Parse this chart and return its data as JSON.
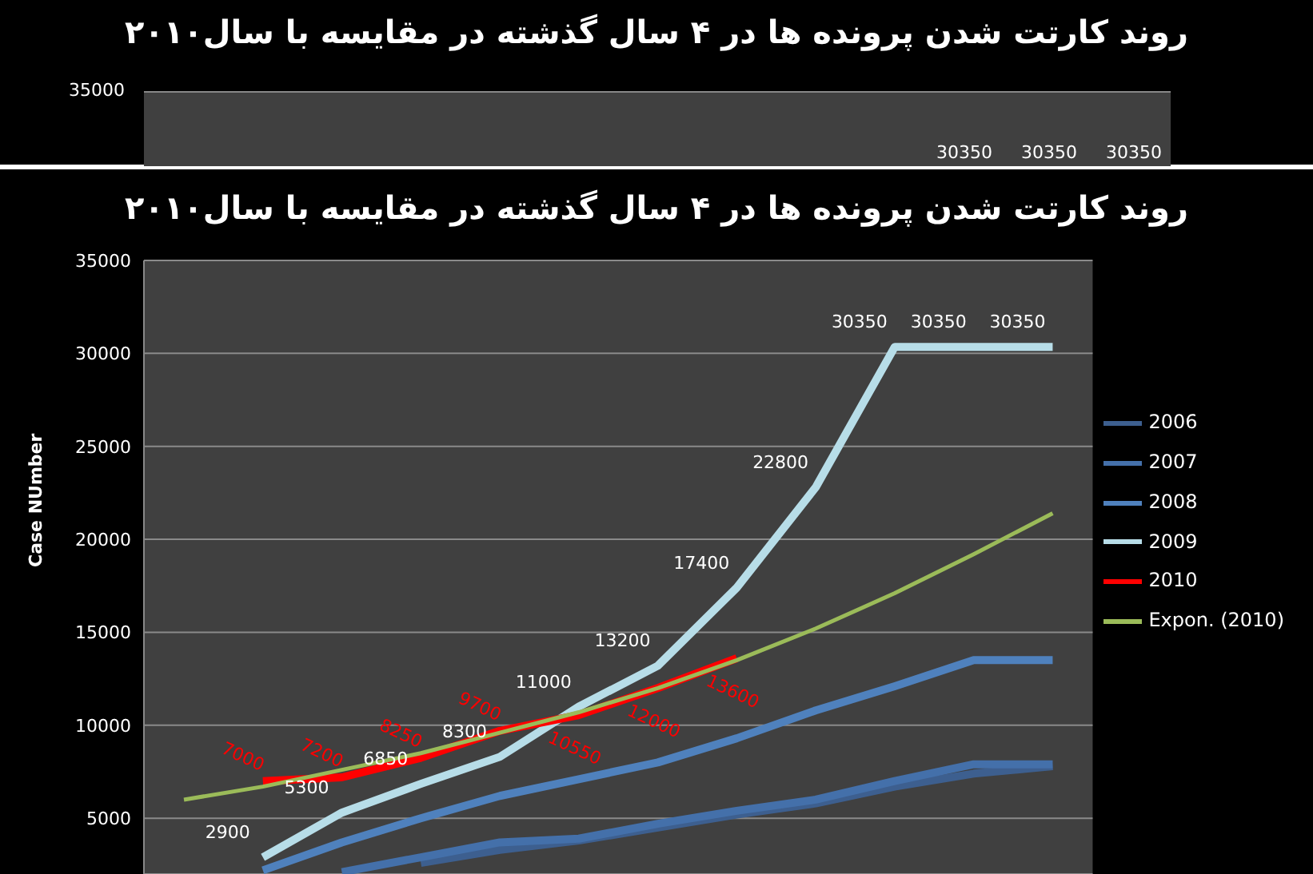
{
  "chart_data": [
    {
      "type": "other",
      "title": "روند کارتت شدن پرونده ها در ۴ سال گذشته در مقایسه با سال۲۰۱۰",
      "annotations": [
        "35000",
        "30350",
        "30350",
        "30350"
      ]
    },
    {
      "type": "line",
      "title": "روند کارتت شدن پرونده ها در ۴ سال گذشته در مقایسه با سال۲۰۱۰",
      "ylabel": "Case NUmber",
      "categories": [
        null,
        null,
        null,
        null,
        null,
        null,
        null,
        null,
        null,
        null,
        null,
        null
      ],
      "ylim": [
        2000,
        35000
      ],
      "yticks": [
        5000,
        10000,
        15000,
        20000,
        25000,
        30000,
        35000
      ],
      "tick_labels": "y",
      "grid": "y",
      "legend": "right",
      "marker": "none",
      "series": [
        {
          "name": "2006",
          "color": "#3d5f8f",
          "values": [
            null,
            null,
            null,
            2600,
            3300,
            3800,
            4500,
            5200,
            5800,
            6700,
            7400,
            7800
          ]
        },
        {
          "name": "2007",
          "color": "#4470aa",
          "values": [
            null,
            null,
            2100,
            2900,
            3700,
            3900,
            4700,
            5400,
            6000,
            7000,
            7900,
            7900
          ]
        },
        {
          "name": "2008",
          "color": "#4f81bd",
          "values": [
            null,
            2200,
            3700,
            5000,
            6200,
            7100,
            8000,
            9300,
            10800,
            12100,
            13500,
            13500
          ]
        },
        {
          "name": "2009",
          "color": "#b7dde8",
          "values": [
            null,
            2900,
            5300,
            6850,
            8300,
            11000,
            13200,
            17400,
            22800,
            30350,
            30350,
            30350
          ],
          "value_labels": [
            null,
            "2900",
            "5300",
            "6850",
            "8300",
            "11000",
            "13200",
            "17400",
            "22800",
            "30350",
            "30350",
            "30350"
          ]
        },
        {
          "name": "2010",
          "color": "#ff0000",
          "values": [
            null,
            7000,
            7200,
            8250,
            9700,
            10550,
            12000,
            13600,
            null,
            null,
            null,
            null
          ],
          "value_labels": [
            null,
            "7000",
            "7200",
            "8250",
            "9700",
            "10550",
            "12000",
            "13600",
            null,
            null,
            null,
            null
          ]
        },
        {
          "name": "Expon. (2010)",
          "color": "#9bbb59",
          "line_style": "solid",
          "values": [
            6000,
            6700,
            7600,
            8500,
            9600,
            10700,
            12000,
            13500,
            15200,
            17100,
            19200,
            21400
          ]
        }
      ]
    }
  ]
}
